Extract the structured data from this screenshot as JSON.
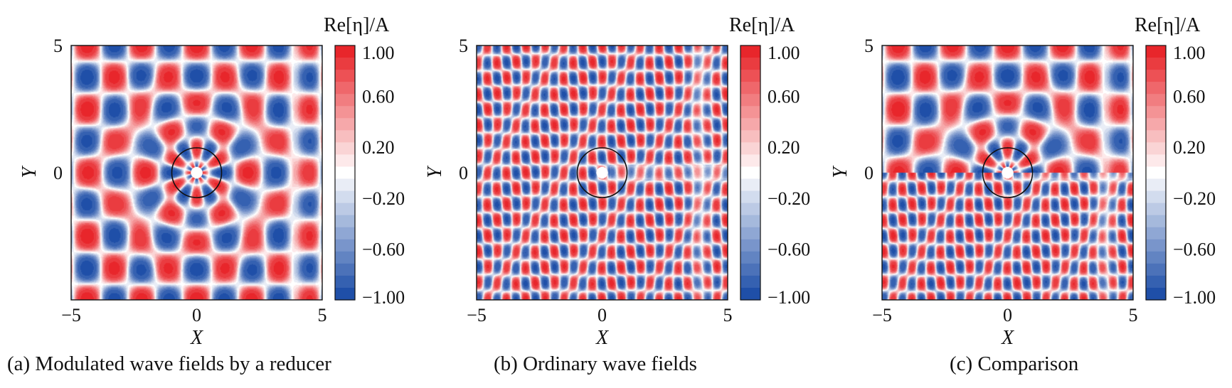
{
  "chart_data": [
    {
      "type": "heatmap",
      "panel_id": "a",
      "caption": "(a) Modulated wave fields by a reducer",
      "xlabel": "X",
      "ylabel": "Y",
      "xlim": [
        -5,
        5
      ],
      "ylim": [
        -5,
        5
      ],
      "x_ticks": [
        "−5",
        "0",
        "5"
      ],
      "y_ticks": [
        "5",
        "0"
      ],
      "colorbar": {
        "label": "Re[η]/A",
        "range": [
          -1,
          1
        ],
        "ticks": [
          "1.00",
          "0.60",
          "0.20",
          "−0.20",
          "−0.60",
          "−1.00"
        ],
        "tick_values": [
          1.0,
          0.6,
          0.2,
          -0.2,
          -0.6,
          -1.0
        ],
        "colors": {
          "low": "#1f4fa8",
          "mid": "#ffffff",
          "high": "#e8262b"
        }
      },
      "pattern": "modulated",
      "annotations": {
        "circle_radius": 1.0,
        "center": [
          0,
          0
        ],
        "hole_radius": 0.22
      }
    },
    {
      "type": "heatmap",
      "panel_id": "b",
      "caption": "(b) Ordinary wave fields",
      "xlabel": "X",
      "ylabel": "Y",
      "xlim": [
        -5,
        5
      ],
      "ylim": [
        -5,
        5
      ],
      "x_ticks": [
        "−5",
        "0",
        "5"
      ],
      "y_ticks": [
        "5",
        "0"
      ],
      "colorbar": {
        "label": "Re[η]/A",
        "range": [
          -1,
          1
        ],
        "ticks": [
          "1.00",
          "0.60",
          "0.20",
          "−0.20",
          "−0.60",
          "−1.00"
        ],
        "tick_values": [
          1.0,
          0.6,
          0.2,
          -0.2,
          -0.6,
          -1.0
        ],
        "colors": {
          "low": "#1f4fa8",
          "mid": "#ffffff",
          "high": "#e8262b"
        }
      },
      "pattern": "ordinary",
      "annotations": {
        "circle_radius": 1.0,
        "center": [
          0,
          0
        ],
        "hole_radius": 0.22
      }
    },
    {
      "type": "heatmap",
      "panel_id": "c",
      "caption": "(c) Comparison",
      "xlabel": "X",
      "ylabel": "Y",
      "xlim": [
        -5,
        5
      ],
      "ylim": [
        -5,
        5
      ],
      "x_ticks": [
        "−5",
        "0",
        "5"
      ],
      "y_ticks": [
        "5",
        "0"
      ],
      "colorbar": {
        "label": "Re[η]/A",
        "range": [
          -1,
          1
        ],
        "ticks": [
          "1.00",
          "0.60",
          "0.20",
          "−0.20",
          "−0.60",
          "−1.00"
        ],
        "tick_values": [
          1.0,
          0.6,
          0.2,
          -0.2,
          -0.6,
          -1.0
        ],
        "colors": {
          "low": "#1f4fa8",
          "mid": "#ffffff",
          "high": "#e8262b"
        }
      },
      "pattern": "comparison",
      "annotations": {
        "circle_radius": 1.0,
        "center": [
          0,
          0
        ],
        "hole_radius": 0.22
      }
    }
  ]
}
